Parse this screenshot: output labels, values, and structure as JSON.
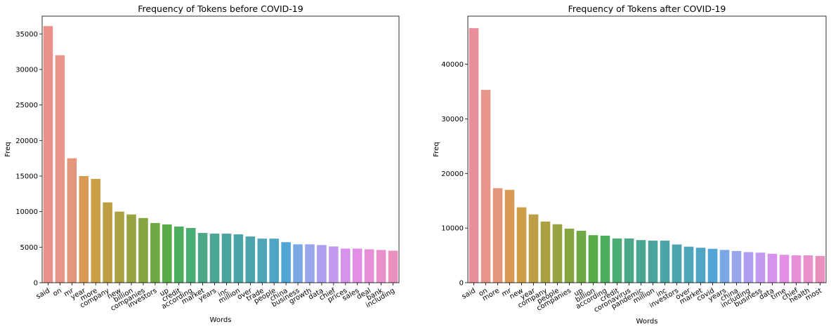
{
  "chart_data": [
    {
      "type": "bar",
      "title": "Frequency of Tokens before COVID-19",
      "xlabel": "Words",
      "ylabel": "Freq",
      "ylim": [
        0,
        37500
      ],
      "yticks": [
        0,
        5000,
        10000,
        15000,
        20000,
        25000,
        30000,
        35000
      ],
      "tick_labels": [
        "0",
        "5000",
        "10000",
        "15000",
        "20000",
        "25000",
        "30000",
        "35000"
      ],
      "categories": [
        "said",
        "on",
        "mr",
        "year",
        "more",
        "company",
        "new",
        "billion",
        "companies",
        "investors",
        "up",
        "credit",
        "according",
        "market",
        "years",
        "inc",
        "million",
        "over",
        "trade",
        "people",
        "china",
        "business",
        "growth",
        "data",
        "chief",
        "prices",
        "sales",
        "deal",
        "bank",
        "including"
      ],
      "values": [
        36100,
        32000,
        17500,
        15000,
        14600,
        11300,
        10000,
        9600,
        9100,
        8400,
        8200,
        7900,
        7700,
        7000,
        6900,
        6900,
        6800,
        6500,
        6200,
        6200,
        5700,
        5400,
        5400,
        5300,
        5100,
        4800,
        4800,
        4700,
        4600,
        4500
      ],
      "colors": [
        "#e8908a",
        "#e8958c",
        "#e3967a",
        "#d99a56",
        "#cc9e48",
        "#bd9e44",
        "#aaa042",
        "#98a342",
        "#84a542",
        "#6ea944",
        "#57ab48",
        "#4cad5f",
        "#4bac74",
        "#4ba886",
        "#4aa592",
        "#4ba49c",
        "#4ba4a5",
        "#4ca4ad",
        "#4ea5b7",
        "#4ea6c4",
        "#52a6d6",
        "#7aa8e5",
        "#98a6ec",
        "#ae9df0",
        "#c39af0",
        "#d593ec",
        "#e18ee4",
        "#e78ed9",
        "#e98fcc",
        "#ea90c0"
      ]
    },
    {
      "type": "bar",
      "title": "Frequency of Tokens after COVID-19",
      "xlabel": "Words",
      "ylabel": "Freq",
      "ylim": [
        0,
        48800
      ],
      "yticks": [
        0,
        10000,
        20000,
        30000,
        40000
      ],
      "tick_labels": [
        "0",
        "10000",
        "20000",
        "30000",
        "40000"
      ],
      "categories": [
        "said",
        "on",
        "more",
        "mr",
        "new",
        "year",
        "company",
        "people",
        "companies",
        "up",
        "billion",
        "according",
        "credit",
        "coronavirus",
        "pandemic",
        "million",
        "inc",
        "investors",
        "over",
        "market",
        "covid",
        "years",
        "china",
        "including",
        "business",
        "data",
        "time",
        "chief",
        "health",
        "most"
      ],
      "values": [
        46600,
        35300,
        17300,
        17000,
        13800,
        12500,
        11200,
        10700,
        9900,
        9500,
        8700,
        8600,
        8100,
        8100,
        7800,
        7700,
        7700,
        7000,
        6600,
        6400,
        6200,
        6000,
        5800,
        5600,
        5500,
        5300,
        5100,
        5000,
        5000,
        4900
      ],
      "colors": [
        "#e8909a",
        "#e8958c",
        "#e3967a",
        "#d99a56",
        "#cc9e48",
        "#bd9e44",
        "#aaa042",
        "#98a342",
        "#84a542",
        "#6ea944",
        "#57ab48",
        "#4cad5f",
        "#4bac74",
        "#4ba886",
        "#4aa592",
        "#4ba49c",
        "#4ba4a5",
        "#4ca4ad",
        "#4ea5b7",
        "#4ea6c4",
        "#52a6d6",
        "#7aa8e5",
        "#98a6ec",
        "#ae9df0",
        "#c39af0",
        "#d593ec",
        "#e18ee4",
        "#e78ed9",
        "#e98fcc",
        "#ea90c0"
      ]
    }
  ]
}
